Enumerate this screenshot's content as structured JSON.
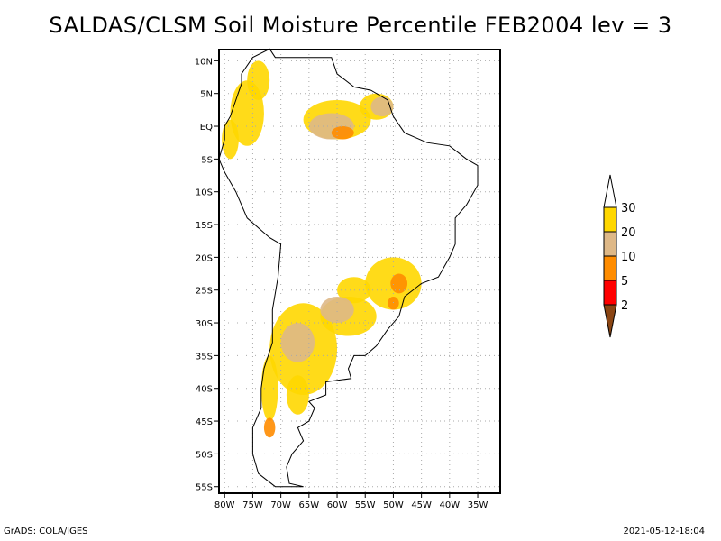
{
  "title": "SALDAS/CLSM Soil Moisture Percentile FEB2004 lev = 3",
  "footer": {
    "left": "GrADS: COLA/IGES",
    "right": "2021-05-12-18:04"
  },
  "map": {
    "lon_range": [
      -81,
      -31
    ],
    "lat_range": [
      -56,
      11.7
    ],
    "lat_ticks": [
      {
        "v": 10,
        "label": "10N"
      },
      {
        "v": 5,
        "label": "5N"
      },
      {
        "v": 0,
        "label": "EQ"
      },
      {
        "v": -5,
        "label": "5S"
      },
      {
        "v": -10,
        "label": "10S"
      },
      {
        "v": -15,
        "label": "15S"
      },
      {
        "v": -20,
        "label": "20S"
      },
      {
        "v": -25,
        "label": "25S"
      },
      {
        "v": -30,
        "label": "30S"
      },
      {
        "v": -35,
        "label": "35S"
      },
      {
        "v": -40,
        "label": "40S"
      },
      {
        "v": -45,
        "label": "45S"
      },
      {
        "v": -50,
        "label": "50S"
      },
      {
        "v": -55,
        "label": "55S"
      }
    ],
    "lon_ticks": [
      {
        "v": -80,
        "label": "80W"
      },
      {
        "v": -75,
        "label": "75W"
      },
      {
        "v": -70,
        "label": "70W"
      },
      {
        "v": -65,
        "label": "65W"
      },
      {
        "v": -60,
        "label": "60W"
      },
      {
        "v": -55,
        "label": "55W"
      },
      {
        "v": -50,
        "label": "50W"
      },
      {
        "v": -45,
        "label": "45W"
      },
      {
        "v": -40,
        "label": "40W"
      },
      {
        "v": -35,
        "label": "35W"
      }
    ]
  },
  "colorbar": {
    "levels": [
      "2",
      "5",
      "10",
      "20",
      "30"
    ],
    "colors": [
      "#8B4513",
      "#FF0000",
      "#FF8C00",
      "#DEB887",
      "#FFD700",
      "#FFFFFF"
    ]
  }
}
